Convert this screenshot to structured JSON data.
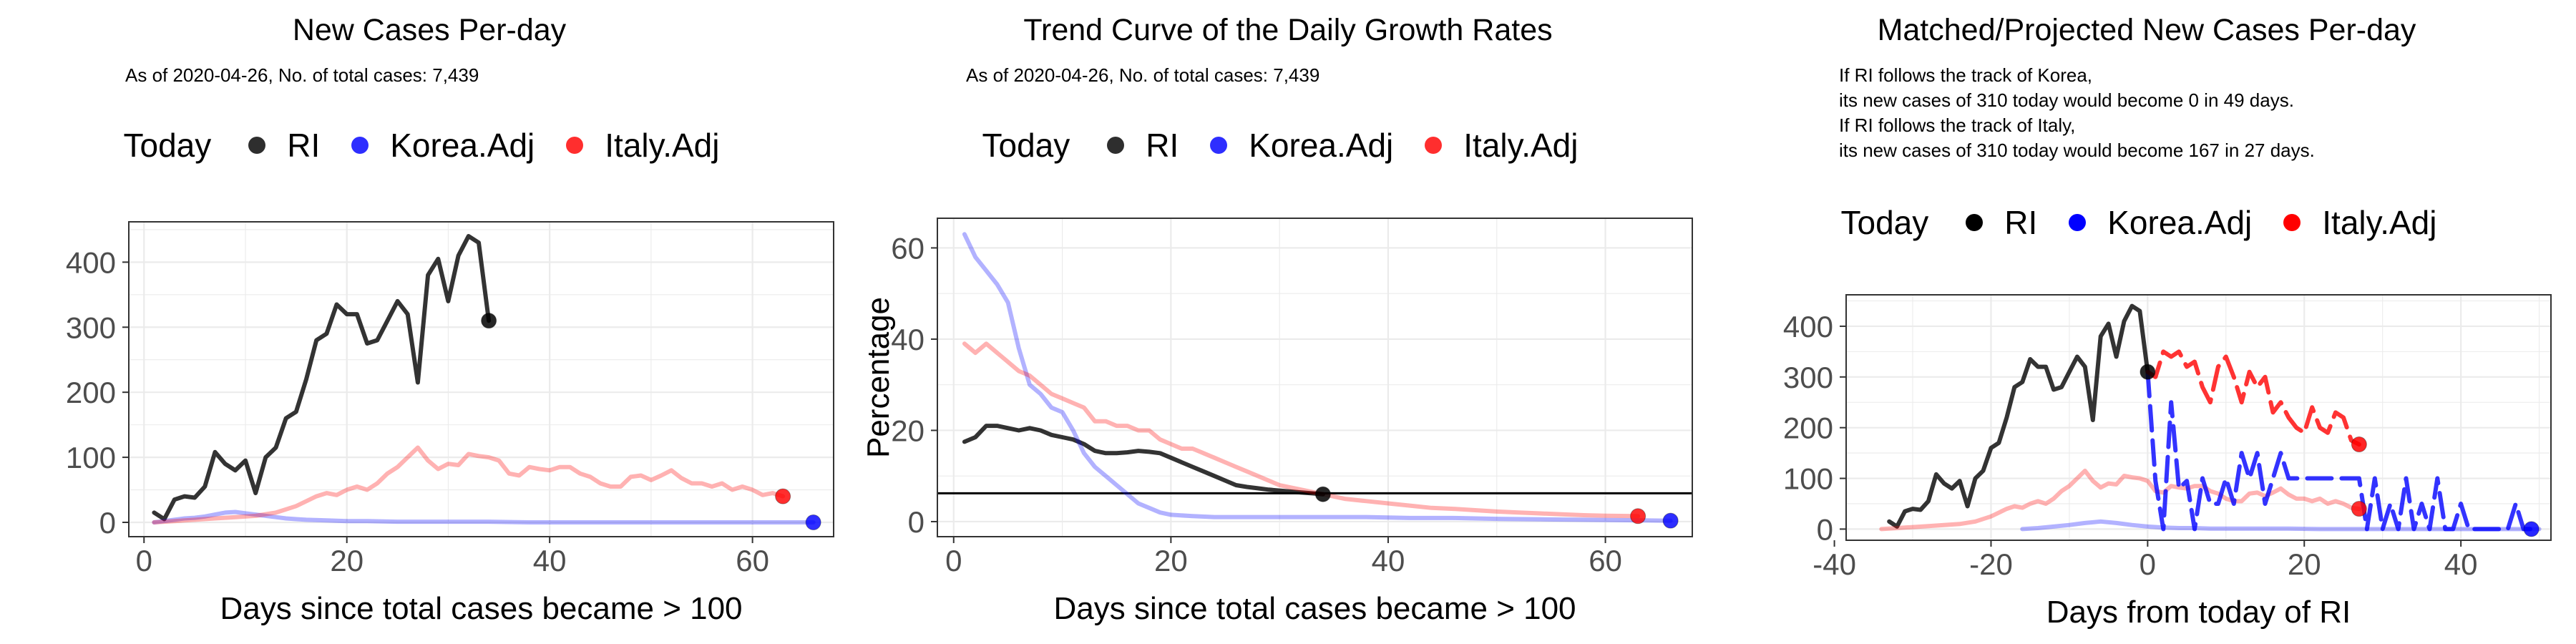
{
  "chart_data": [
    {
      "type": "line",
      "title": "New Cases Per-day",
      "subtitle": [
        "As of 2020-04-26, No. of total cases: 7,439"
      ],
      "xlabel": "Days since total cases became > 100",
      "ylabel": "",
      "xlim": [
        -1.5,
        68
      ],
      "ylim": [
        -22,
        462
      ],
      "xticks": [
        0,
        20,
        40,
        60
      ],
      "yticks": [
        0,
        100,
        200,
        300,
        400
      ],
      "legend": {
        "title": "Today",
        "placement": "top",
        "items": [
          {
            "label": "RI",
            "color": "#000000"
          },
          {
            "label": "Korea.Adj",
            "color": "#0000ff"
          },
          {
            "label": "Italy.Adj",
            "color": "#ff0000"
          }
        ]
      },
      "series": [
        {
          "name": "RI",
          "color": "#000000",
          "opacity": 0.8,
          "endpoint": true,
          "x": [
            1,
            2,
            3,
            4,
            5,
            6,
            7,
            8,
            9,
            10,
            11,
            12,
            13,
            14,
            15,
            16,
            17,
            18,
            19,
            20,
            21,
            22,
            23,
            24,
            25,
            26,
            27,
            28,
            29,
            30,
            31,
            32,
            33,
            34
          ],
          "y": [
            15,
            5,
            35,
            40,
            38,
            55,
            108,
            90,
            80,
            95,
            45,
            100,
            115,
            160,
            170,
            220,
            280,
            290,
            335,
            320,
            320,
            275,
            280,
            310,
            340,
            320,
            215,
            380,
            405,
            340,
            410,
            440,
            430,
            310
          ]
        },
        {
          "name": "Korea.Adj",
          "color": "#0000ff",
          "opacity": 0.3,
          "endpoint": true,
          "x": [
            1,
            2,
            3,
            4,
            5,
            6,
            7,
            8,
            9,
            10,
            11,
            12,
            13,
            14,
            15,
            16,
            18,
            20,
            22,
            25,
            28,
            31,
            34,
            38,
            42,
            46,
            50,
            54,
            58,
            62,
            66
          ],
          "y": [
            0,
            2,
            4,
            6,
            7,
            9,
            12,
            15,
            16,
            14,
            12,
            10,
            8,
            6,
            5,
            4,
            3,
            2,
            2,
            1,
            1,
            1,
            1,
            0,
            0,
            0,
            0,
            0,
            0,
            0,
            0
          ]
        },
        {
          "name": "Italy.Adj",
          "color": "#ff0000",
          "opacity": 0.3,
          "endpoint": true,
          "x": [
            1,
            3,
            5,
            7,
            9,
            11,
            13,
            15,
            17,
            18,
            19,
            20,
            21,
            22,
            23,
            24,
            25,
            26,
            27,
            28,
            29,
            30,
            31,
            32,
            33,
            34,
            35,
            36,
            37,
            38,
            39,
            40,
            41,
            42,
            43,
            44,
            45,
            46,
            47,
            48,
            49,
            50,
            51,
            52,
            53,
            54,
            55,
            56,
            57,
            58,
            59,
            60,
            61,
            62,
            63
          ],
          "y": [
            0,
            2,
            4,
            6,
            8,
            10,
            15,
            25,
            40,
            45,
            42,
            50,
            55,
            50,
            60,
            75,
            85,
            100,
            115,
            95,
            82,
            90,
            88,
            105,
            102,
            100,
            95,
            75,
            72,
            85,
            82,
            80,
            85,
            85,
            75,
            70,
            60,
            55,
            55,
            70,
            72,
            65,
            72,
            80,
            68,
            60,
            60,
            55,
            60,
            50,
            55,
            50,
            42,
            45,
            40
          ]
        }
      ]
    },
    {
      "type": "line",
      "title": "Trend Curve of the Daily Growth Rates",
      "subtitle": [
        "As of 2020-04-26, No. of total cases: 7,439"
      ],
      "xlabel": "Days since total cases became > 100",
      "ylabel": "Percentage",
      "xlim": [
        -1.5,
        68
      ],
      "ylim": [
        -3.3,
        66.5
      ],
      "xticks": [
        0,
        20,
        40,
        60
      ],
      "yticks": [
        0,
        20,
        40,
        60
      ],
      "hline": 6.2,
      "legend": {
        "title": "Today",
        "placement": "top",
        "items": [
          {
            "label": "RI",
            "color": "#000000"
          },
          {
            "label": "Korea.Adj",
            "color": "#0000ff"
          },
          {
            "label": "Italy.Adj",
            "color": "#ff0000"
          }
        ]
      },
      "series": [
        {
          "name": "RI",
          "color": "#000000",
          "opacity": 0.8,
          "endpoint": true,
          "x": [
            1,
            2,
            3,
            4,
            5,
            6,
            7,
            8,
            9,
            10,
            11,
            12,
            13,
            14,
            15,
            16,
            17,
            18,
            19,
            20,
            21,
            22,
            23,
            24,
            25,
            26,
            27,
            28,
            29,
            30,
            31,
            32,
            33,
            34
          ],
          "y": [
            17.5,
            18.5,
            21,
            21,
            20.5,
            20,
            20.5,
            20,
            19,
            18.5,
            18,
            17,
            15.5,
            15,
            15,
            15.2,
            15.5,
            15.3,
            15,
            14,
            13,
            12,
            11,
            10,
            9,
            8,
            7.6,
            7.3,
            7,
            6.8,
            6.6,
            6.4,
            6.2,
            6
          ]
        },
        {
          "name": "Korea.Adj",
          "color": "#0000ff",
          "opacity": 0.3,
          "endpoint": true,
          "x": [
            1,
            2,
            3,
            4,
            5,
            6,
            7,
            8,
            9,
            10,
            11,
            12,
            13,
            14,
            15,
            16,
            17,
            18,
            19,
            20,
            22,
            24,
            26,
            28,
            30,
            34,
            38,
            42,
            46,
            50,
            54,
            58,
            62,
            66
          ],
          "y": [
            63,
            58,
            55,
            52,
            48,
            38,
            30,
            28,
            25,
            24,
            20,
            15,
            12,
            10,
            8,
            6,
            4,
            3,
            2,
            1.5,
            1.2,
            1,
            1,
            1,
            1,
            1,
            1,
            0.8,
            0.8,
            0.6,
            0.5,
            0.4,
            0.3,
            0.2
          ]
        },
        {
          "name": "Italy.Adj",
          "color": "#ff0000",
          "opacity": 0.3,
          "endpoint": true,
          "x": [
            1,
            2,
            3,
            4,
            5,
            6,
            7,
            8,
            9,
            10,
            11,
            12,
            13,
            14,
            15,
            16,
            17,
            18,
            19,
            20,
            21,
            22,
            23,
            24,
            25,
            26,
            27,
            28,
            29,
            30,
            32,
            34,
            36,
            38,
            40,
            42,
            44,
            46,
            48,
            50,
            52,
            54,
            56,
            58,
            60,
            63
          ],
          "y": [
            39,
            37,
            39,
            37,
            35,
            33,
            32,
            30,
            28,
            27,
            26,
            25,
            22,
            22,
            21,
            21,
            20,
            20,
            18,
            17,
            16,
            16,
            15,
            14,
            13,
            12,
            11,
            10,
            9,
            8,
            7,
            6,
            5,
            4.5,
            4,
            3.5,
            3,
            2.8,
            2.5,
            2.2,
            2,
            1.8,
            1.6,
            1.4,
            1.3,
            1.2
          ]
        }
      ]
    },
    {
      "type": "line",
      "title": "Matched/Projected New Cases Per-day",
      "subtitle": [
        "If RI follows the track of Korea,",
        "its new cases of 310 today would become 0 in 49 days.",
        "If RI follows the track of Italy,",
        "its new cases of 310 today would become 167 in 27 days."
      ],
      "xlabel": "Days from today of RI",
      "ylabel": "",
      "xlim": [
        -38.5,
        51.5
      ],
      "ylim": [
        -22,
        462
      ],
      "xticks": [
        -40,
        -20,
        0,
        20,
        40
      ],
      "yticks": [
        0,
        100,
        200,
        300,
        400
      ],
      "legend": {
        "title": "Today",
        "placement": "top",
        "items": [
          {
            "label": "RI",
            "color": "#000000"
          },
          {
            "label": "Korea.Adj",
            "color": "#0000ff"
          },
          {
            "label": "Italy.Adj",
            "color": "#ff0000"
          }
        ]
      },
      "series": [
        {
          "name": "RI",
          "color": "#000000",
          "opacity": 0.8,
          "endpoint": true,
          "x": [
            -33,
            -32,
            -31,
            -30,
            -29,
            -28,
            -27,
            -26,
            -25,
            -24,
            -23,
            -22,
            -21,
            -20,
            -19,
            -18,
            -17,
            -16,
            -15,
            -14,
            -13,
            -12,
            -11,
            -10,
            -9,
            -8,
            -7,
            -6,
            -5,
            -4,
            -3,
            -2,
            -1,
            0
          ],
          "y": [
            15,
            5,
            35,
            40,
            38,
            55,
            108,
            90,
            80,
            95,
            45,
            100,
            115,
            160,
            170,
            220,
            280,
            290,
            335,
            320,
            320,
            275,
            280,
            310,
            340,
            320,
            215,
            380,
            405,
            340,
            410,
            440,
            430,
            310
          ]
        },
        {
          "name": "Korea.Adj",
          "color": "#0000ff",
          "opacity": 0.3,
          "x": [
            -16,
            -14,
            -12,
            -10,
            -8,
            -6,
            -4,
            -2,
            0,
            2,
            4,
            6,
            8,
            10,
            14,
            18,
            22,
            26,
            30,
            34,
            38,
            42,
            46,
            50
          ],
          "y": [
            0,
            2,
            5,
            8,
            12,
            15,
            12,
            8,
            5,
            3,
            2,
            2,
            1,
            1,
            1,
            1,
            0,
            0,
            0,
            0,
            0,
            0,
            0,
            0
          ]
        },
        {
          "name": "Italy.Adj",
          "color": "#ff0000",
          "opacity": 0.3,
          "endpoint": true,
          "x": [
            -34,
            -32,
            -30,
            -28,
            -26,
            -24,
            -22,
            -20,
            -18,
            -17,
            -16,
            -15,
            -14,
            -13,
            -12,
            -11,
            -10,
            -9,
            -8,
            -7,
            -6,
            -5,
            -4,
            -3,
            -2,
            -1,
            0,
            1,
            2,
            3,
            4,
            5,
            6,
            7,
            8,
            9,
            10,
            11,
            12,
            13,
            14,
            15,
            16,
            17,
            18,
            19,
            20,
            21,
            22,
            23,
            24,
            25,
            26,
            27
          ],
          "y": [
            0,
            2,
            4,
            6,
            8,
            10,
            15,
            25,
            40,
            45,
            42,
            50,
            55,
            50,
            60,
            75,
            85,
            100,
            115,
            95,
            82,
            90,
            88,
            105,
            102,
            100,
            95,
            75,
            72,
            85,
            82,
            80,
            85,
            85,
            75,
            70,
            60,
            55,
            55,
            70,
            72,
            65,
            72,
            80,
            68,
            60,
            60,
            55,
            60,
            50,
            55,
            50,
            42,
            40
          ]
        },
        {
          "name": "Korea.Adj projection",
          "color": "#0000ff",
          "opacity": 0.8,
          "dashed": true,
          "endpoint": true,
          "x": [
            0,
            1,
            2,
            3,
            4,
            5,
            6,
            7,
            8,
            9,
            10,
            11,
            12,
            13,
            14,
            15,
            16,
            17,
            18,
            19,
            20,
            21,
            22,
            23,
            24,
            25,
            26,
            27,
            28,
            29,
            30,
            31,
            32,
            33,
            34,
            35,
            36,
            37,
            38,
            39,
            40,
            41,
            42,
            43,
            44,
            45,
            46,
            47,
            48,
            49
          ],
          "y": [
            310,
            95,
            0,
            250,
            80,
            95,
            0,
            100,
            50,
            50,
            100,
            50,
            150,
            100,
            150,
            50,
            100,
            150,
            100,
            100,
            100,
            100,
            100,
            100,
            100,
            100,
            100,
            100,
            0,
            100,
            0,
            50,
            0,
            100,
            0,
            50,
            0,
            100,
            0,
            0,
            50,
            0,
            0,
            0,
            0,
            0,
            0,
            50,
            0,
            0
          ]
        },
        {
          "name": "Italy.Adj projection",
          "color": "#ff0000",
          "opacity": 0.8,
          "dashed": true,
          "endpoint": true,
          "x": [
            0,
            1,
            2,
            3,
            4,
            5,
            6,
            7,
            8,
            9,
            10,
            11,
            12,
            13,
            14,
            15,
            16,
            17,
            18,
            19,
            20,
            21,
            22,
            23,
            24,
            25,
            26,
            27
          ],
          "y": [
            310,
            300,
            350,
            340,
            350,
            320,
            330,
            280,
            250,
            320,
            340,
            300,
            250,
            310,
            280,
            300,
            230,
            250,
            220,
            200,
            190,
            240,
            200,
            190,
            230,
            220,
            175,
            167
          ]
        }
      ]
    }
  ]
}
